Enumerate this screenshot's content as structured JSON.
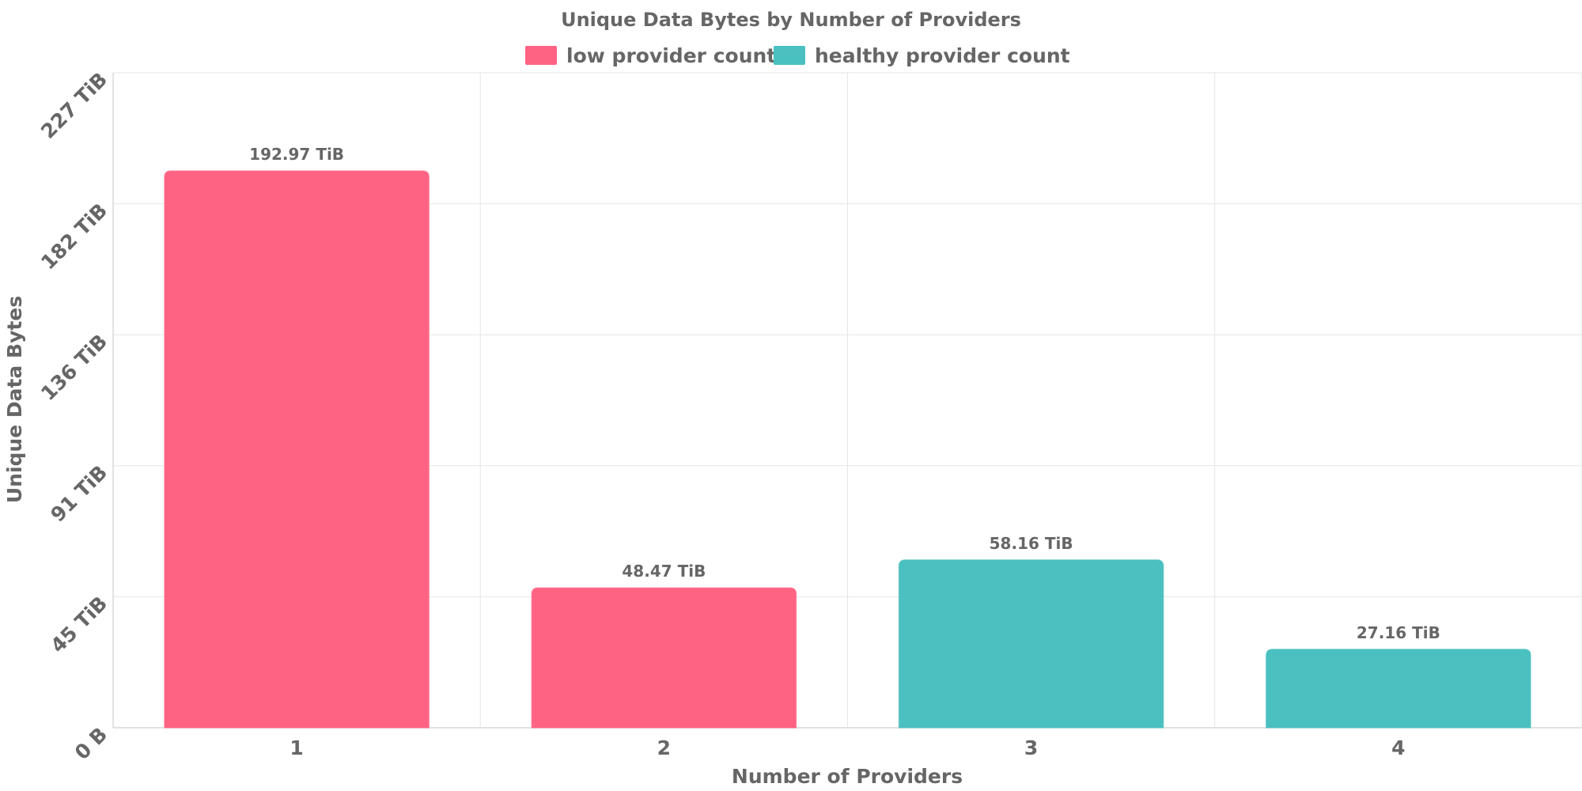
{
  "chart_data": {
    "type": "bar",
    "title": "Unique Data Bytes by Number of Providers",
    "xlabel": "Number of Providers",
    "ylabel": "Unique Data Bytes",
    "categories": [
      "1",
      "2",
      "3",
      "4"
    ],
    "values": [
      192.97,
      48.47,
      58.16,
      27.16
    ],
    "value_labels": [
      "192.97 TiB",
      "48.47 TiB",
      "58.16 TiB",
      "27.16 TiB"
    ],
    "bar_series": [
      "low provider count",
      "low provider count",
      "healthy provider count",
      "healthy provider count"
    ],
    "y_unit": "TiB",
    "ylim": [
      0,
      227
    ],
    "yticks": [
      0,
      45.4,
      90.8,
      136.2,
      181.6,
      227
    ],
    "ytick_labels": [
      "0 B",
      "45 TiB",
      "91 TiB",
      "136 TiB",
      "182 TiB",
      "227 TiB"
    ],
    "grid": true,
    "legend_position": "top-center",
    "series": [
      {
        "name": "low provider count",
        "color": "#ff6384"
      },
      {
        "name": "healthy provider count",
        "color": "#4bc0c0"
      }
    ]
  }
}
